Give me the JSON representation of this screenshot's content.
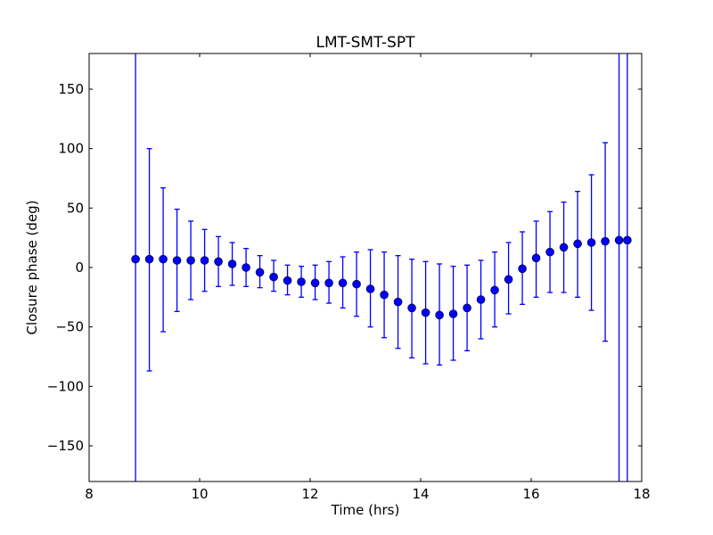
{
  "chart_data": {
    "type": "scatter",
    "title": "LMT-SMT-SPT",
    "xlabel": "Time (hrs)",
    "ylabel": "Closure phase (deg)",
    "xlim": [
      8,
      18
    ],
    "ylim": [
      -180,
      180
    ],
    "xticks": [
      8,
      10,
      12,
      14,
      16,
      18
    ],
    "yticks": [
      -150,
      -100,
      -50,
      0,
      50,
      100,
      150
    ],
    "ytick_labels": [
      "−150",
      "−100",
      "−50",
      "0",
      "50",
      "100",
      "150"
    ],
    "grid": false,
    "marker_color": "#0000ff",
    "errorbar_color": "#0000ff",
    "series": [
      {
        "name": "closure phase",
        "x": [
          8.84,
          9.09,
          9.34,
          9.59,
          9.84,
          10.09,
          10.34,
          10.59,
          10.84,
          11.09,
          11.34,
          11.59,
          11.84,
          12.09,
          12.34,
          12.59,
          12.84,
          13.09,
          13.34,
          13.59,
          13.84,
          14.09,
          14.34,
          14.59,
          14.84,
          15.09,
          15.34,
          15.59,
          15.84,
          16.09,
          16.34,
          16.59,
          16.84,
          17.09,
          17.34,
          17.59,
          17.74
        ],
        "y": [
          7,
          7,
          7,
          6,
          6,
          6,
          5,
          3,
          0,
          -4,
          -8,
          -11,
          -12,
          -13,
          -13,
          -13,
          -14,
          -18,
          -23,
          -29,
          -34,
          -38,
          -40,
          -39,
          -34,
          -27,
          -19,
          -10,
          -1,
          8,
          13,
          17,
          20,
          21,
          22,
          23,
          23
        ],
        "err_low": [
          -400,
          -87,
          -54,
          -37,
          -27,
          -20,
          -16,
          -15,
          -16,
          -17,
          -20,
          -23,
          -25,
          -27,
          -30,
          -34,
          -41,
          -50,
          -59,
          -68,
          -76,
          -81,
          -82,
          -78,
          -70,
          -60,
          -50,
          -39,
          -31,
          -25,
          -21,
          -21,
          -25,
          -36,
          -62,
          -400,
          -400
        ],
        "err_high": [
          400,
          100,
          67,
          49,
          39,
          32,
          26,
          21,
          16,
          10,
          6,
          2,
          1,
          2,
          5,
          9,
          13,
          15,
          13,
          10,
          7,
          5,
          3,
          1,
          2,
          6,
          13,
          21,
          30,
          39,
          47,
          55,
          64,
          78,
          105,
          400,
          400
        ]
      }
    ]
  }
}
